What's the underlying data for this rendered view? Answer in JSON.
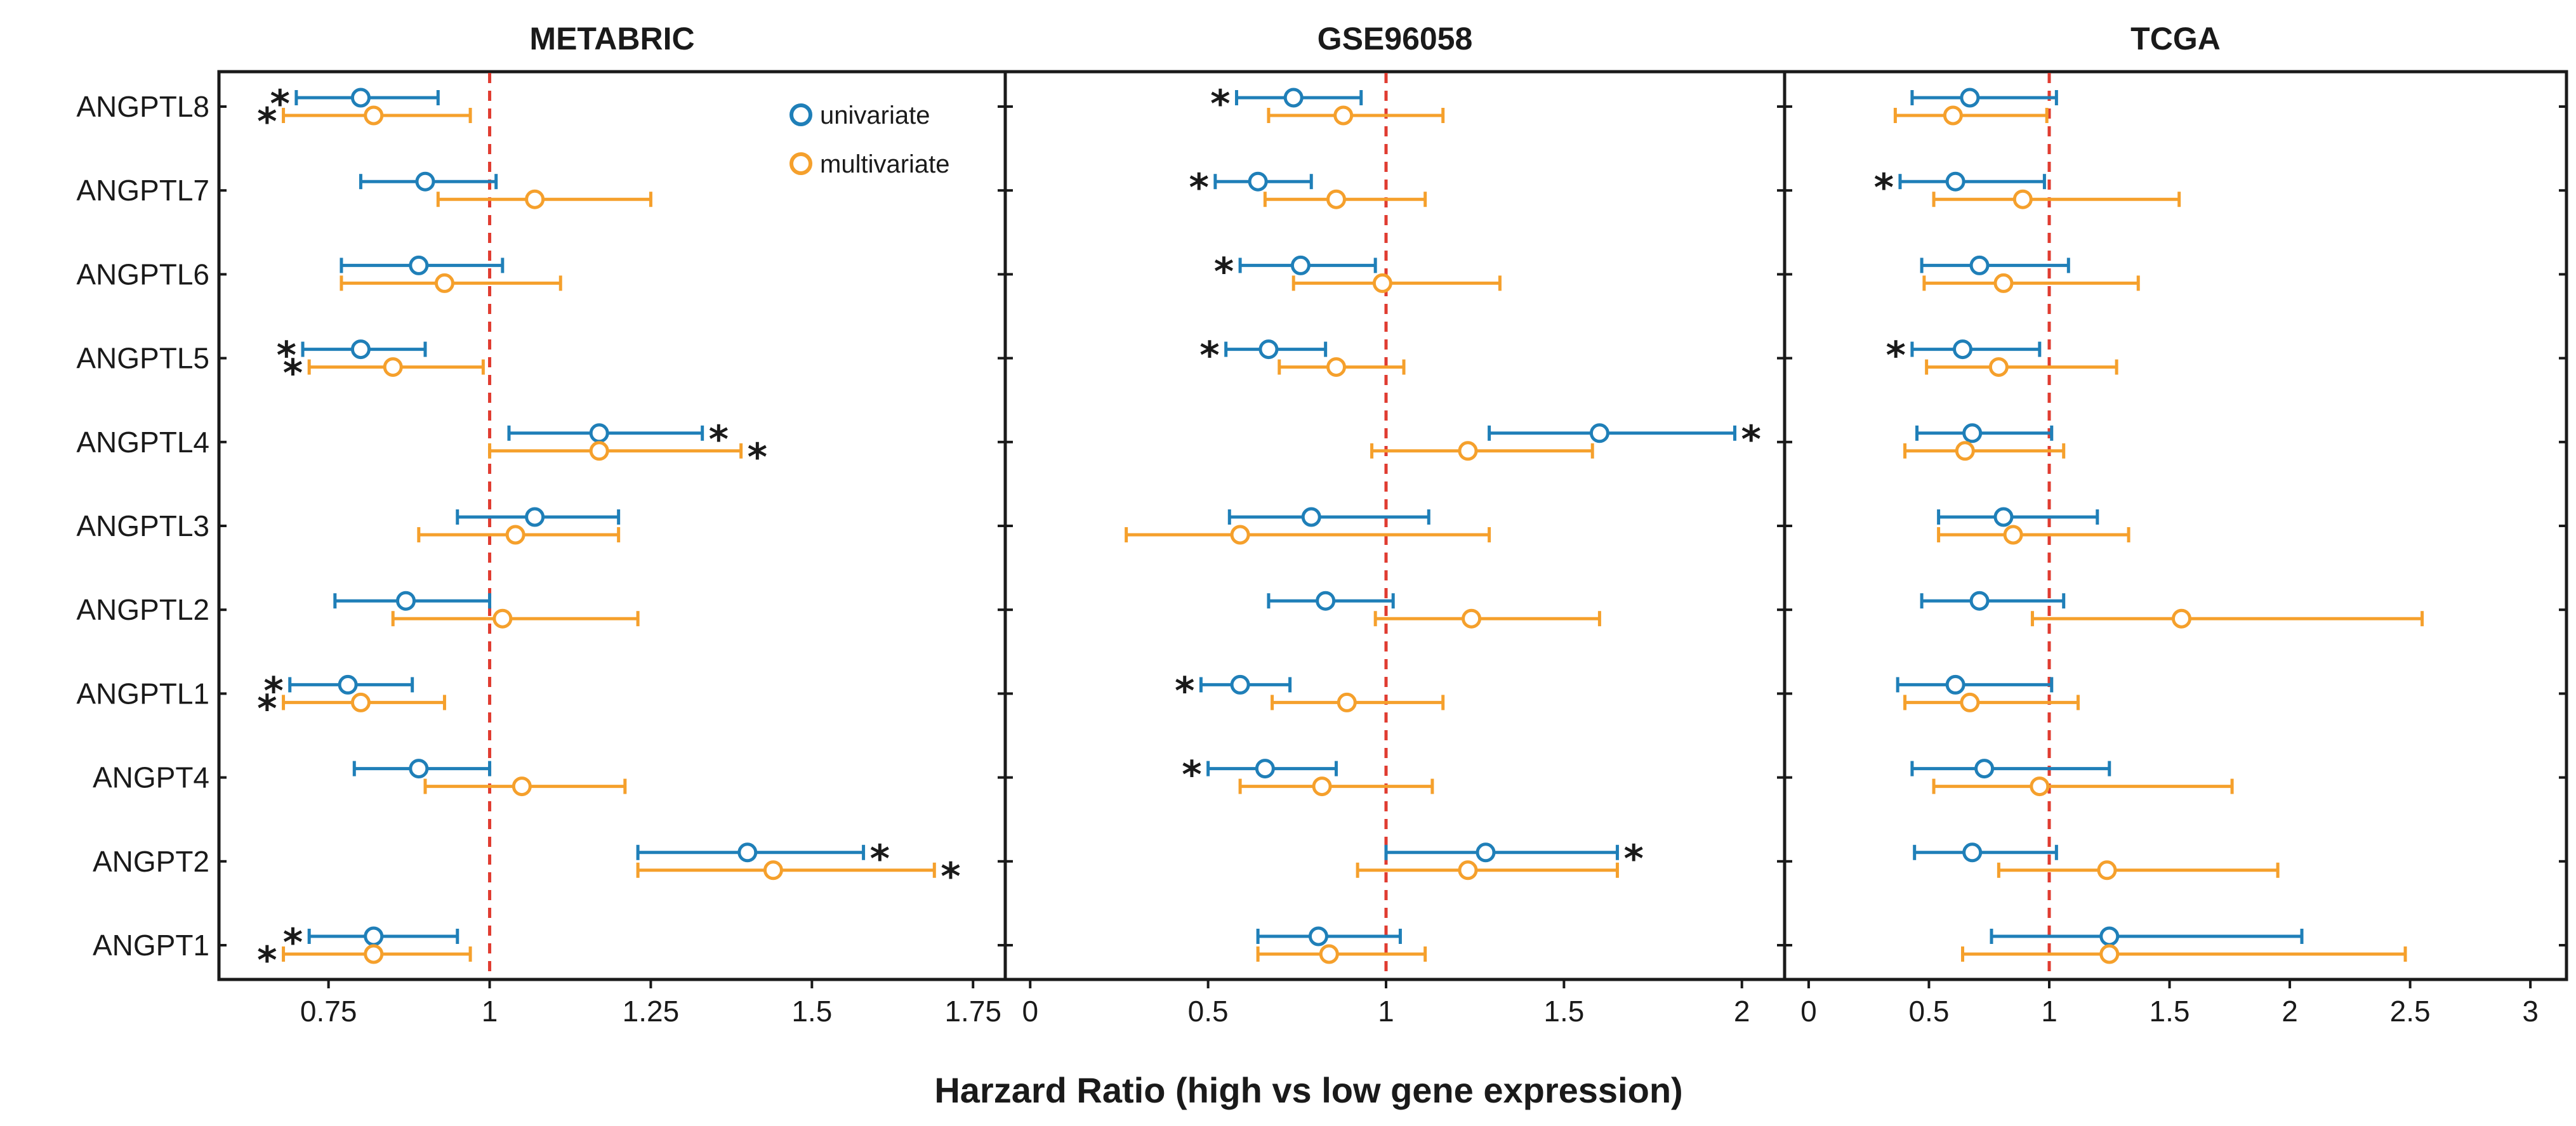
{
  "figure": {
    "xlabel": "Harzard Ratio (high vs low gene expression)"
  },
  "colors": {
    "univariate": "#1f7fb8",
    "multivariate": "#f5a02c",
    "reference": "#e03c31",
    "frame": "#1a1a1a"
  },
  "legend": {
    "univariate": "univariate",
    "multivariate": "multivariate"
  },
  "chart_data": [
    {
      "type": "forest",
      "title": "METABRIC",
      "xlim": [
        0.58,
        1.8
      ],
      "xticks": [
        0.75,
        1,
        1.25,
        1.5,
        1.75
      ],
      "xtick_labels": [
        "0.75",
        "1",
        "1.25",
        "1.5",
        "1.75"
      ],
      "reference_x": 1,
      "genes": [
        "ANGPTL8",
        "ANGPTL7",
        "ANGPTL6",
        "ANGPTL5",
        "ANGPTL4",
        "ANGPTL3",
        "ANGPTL2",
        "ANGPTL1",
        "ANGPT4",
        "ANGPT2",
        "ANGPT1"
      ],
      "series": [
        {
          "name": "univariate",
          "hr": [
            0.8,
            0.9,
            0.89,
            0.8,
            1.17,
            1.07,
            0.87,
            0.78,
            0.89,
            1.4,
            0.82
          ],
          "lower": [
            0.7,
            0.8,
            0.77,
            0.71,
            1.03,
            0.95,
            0.76,
            0.69,
            0.79,
            1.23,
            0.72
          ],
          "upper": [
            0.92,
            1.01,
            1.02,
            0.9,
            1.33,
            1.2,
            1.0,
            0.88,
            1.0,
            1.58,
            0.95
          ],
          "significant": [
            true,
            false,
            false,
            true,
            true,
            false,
            false,
            true,
            false,
            true,
            true
          ]
        },
        {
          "name": "multivariate",
          "hr": [
            0.82,
            1.07,
            0.93,
            0.85,
            1.17,
            1.04,
            1.02,
            0.8,
            1.05,
            1.44,
            0.82
          ],
          "lower": [
            0.68,
            0.92,
            0.77,
            0.72,
            1.0,
            0.89,
            0.85,
            0.68,
            0.9,
            1.23,
            0.68
          ],
          "upper": [
            0.97,
            1.25,
            1.11,
            0.99,
            1.39,
            1.2,
            1.23,
            0.93,
            1.21,
            1.69,
            0.97
          ],
          "significant": [
            true,
            false,
            false,
            true,
            true,
            false,
            false,
            true,
            false,
            true,
            true
          ]
        }
      ]
    },
    {
      "type": "forest",
      "title": "GSE96058",
      "xlim": [
        -0.07,
        2.12
      ],
      "xticks": [
        0,
        0.5,
        1,
        1.5,
        2
      ],
      "xtick_labels": [
        "0",
        "0.5",
        "1",
        "1.5",
        "2"
      ],
      "reference_x": 1,
      "genes": [
        "ANGPTL8",
        "ANGPTL7",
        "ANGPTL6",
        "ANGPTL5",
        "ANGPTL4",
        "ANGPTL3",
        "ANGPTL2",
        "ANGPTL1",
        "ANGPT4",
        "ANGPT2",
        "ANGPT1"
      ],
      "series": [
        {
          "name": "univariate",
          "hr": [
            0.74,
            0.64,
            0.76,
            0.67,
            1.6,
            0.79,
            0.83,
            0.59,
            0.66,
            1.28,
            0.81
          ],
          "lower": [
            0.58,
            0.52,
            0.59,
            0.55,
            1.29,
            0.56,
            0.67,
            0.48,
            0.5,
            1.0,
            0.64
          ],
          "upper": [
            0.93,
            0.79,
            0.97,
            0.83,
            1.98,
            1.12,
            1.02,
            0.73,
            0.86,
            1.65,
            1.04
          ],
          "significant": [
            true,
            true,
            true,
            true,
            true,
            false,
            false,
            true,
            true,
            true,
            false
          ]
        },
        {
          "name": "multivariate",
          "hr": [
            0.88,
            0.86,
            0.99,
            0.86,
            1.23,
            0.59,
            1.24,
            0.89,
            0.82,
            1.23,
            0.84
          ],
          "lower": [
            0.67,
            0.66,
            0.74,
            0.7,
            0.96,
            0.27,
            0.97,
            0.68,
            0.59,
            0.92,
            0.64
          ],
          "upper": [
            1.16,
            1.11,
            1.32,
            1.05,
            1.58,
            1.29,
            1.6,
            1.16,
            1.13,
            1.65,
            1.11
          ],
          "significant": [
            false,
            false,
            false,
            false,
            false,
            false,
            false,
            false,
            false,
            false,
            false
          ]
        }
      ]
    },
    {
      "type": "forest",
      "title": "TCGA",
      "xlim": [
        -0.1,
        3.15
      ],
      "xticks": [
        0,
        0.5,
        1,
        1.5,
        2,
        2.5,
        3
      ],
      "xtick_labels": [
        "0",
        "0.5",
        "1",
        "1.5",
        "2",
        "2.5",
        "3"
      ],
      "reference_x": 1,
      "genes": [
        "ANGPTL8",
        "ANGPTL7",
        "ANGPTL6",
        "ANGPTL5",
        "ANGPTL4",
        "ANGPTL3",
        "ANGPTL2",
        "ANGPTL1",
        "ANGPT4",
        "ANGPT2",
        "ANGPT1"
      ],
      "series": [
        {
          "name": "univariate",
          "hr": [
            0.67,
            0.61,
            0.71,
            0.64,
            0.68,
            0.81,
            0.71,
            0.61,
            0.73,
            0.68,
            1.25
          ],
          "lower": [
            0.43,
            0.38,
            0.47,
            0.43,
            0.45,
            0.54,
            0.47,
            0.37,
            0.43,
            0.44,
            0.76
          ],
          "upper": [
            1.03,
            0.98,
            1.08,
            0.96,
            1.01,
            1.2,
            1.06,
            1.01,
            1.25,
            1.03,
            2.05
          ],
          "significant": [
            false,
            true,
            false,
            true,
            false,
            false,
            false,
            false,
            false,
            false,
            false
          ]
        },
        {
          "name": "multivariate",
          "hr": [
            0.6,
            0.89,
            0.81,
            0.79,
            0.65,
            0.85,
            1.55,
            0.67,
            0.96,
            1.24,
            1.25
          ],
          "lower": [
            0.36,
            0.52,
            0.48,
            0.49,
            0.4,
            0.54,
            0.93,
            0.4,
            0.52,
            0.79,
            0.64
          ],
          "upper": [
            0.99,
            1.54,
            1.37,
            1.28,
            1.06,
            1.33,
            2.55,
            1.12,
            1.76,
            1.95,
            2.48
          ],
          "significant": [
            false,
            false,
            false,
            false,
            false,
            false,
            false,
            false,
            false,
            false,
            false
          ]
        }
      ]
    }
  ]
}
